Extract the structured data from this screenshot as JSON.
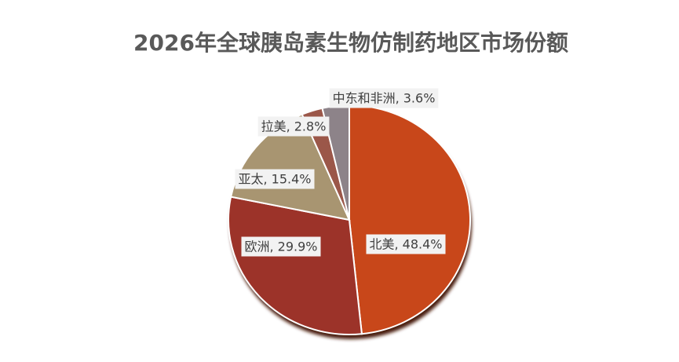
{
  "chart_data": {
    "type": "pie",
    "title": "2026年全球胰岛素生物仿制药地区市场份额",
    "categories": [
      "北美",
      "欧洲",
      "亚太",
      "拉美",
      "中东和非洲"
    ],
    "values": [
      48.4,
      29.9,
      15.4,
      2.8,
      3.6
    ],
    "value_labels": [
      "北美, 48.4%",
      "欧洲, 29.9%",
      "亚太, 15.4%",
      "拉美, 2.8%",
      "中东和非洲, 3.6%"
    ],
    "colors": [
      "#c8471a",
      "#9c3329",
      "#a89571",
      "#9b5749",
      "#8d8389"
    ]
  }
}
